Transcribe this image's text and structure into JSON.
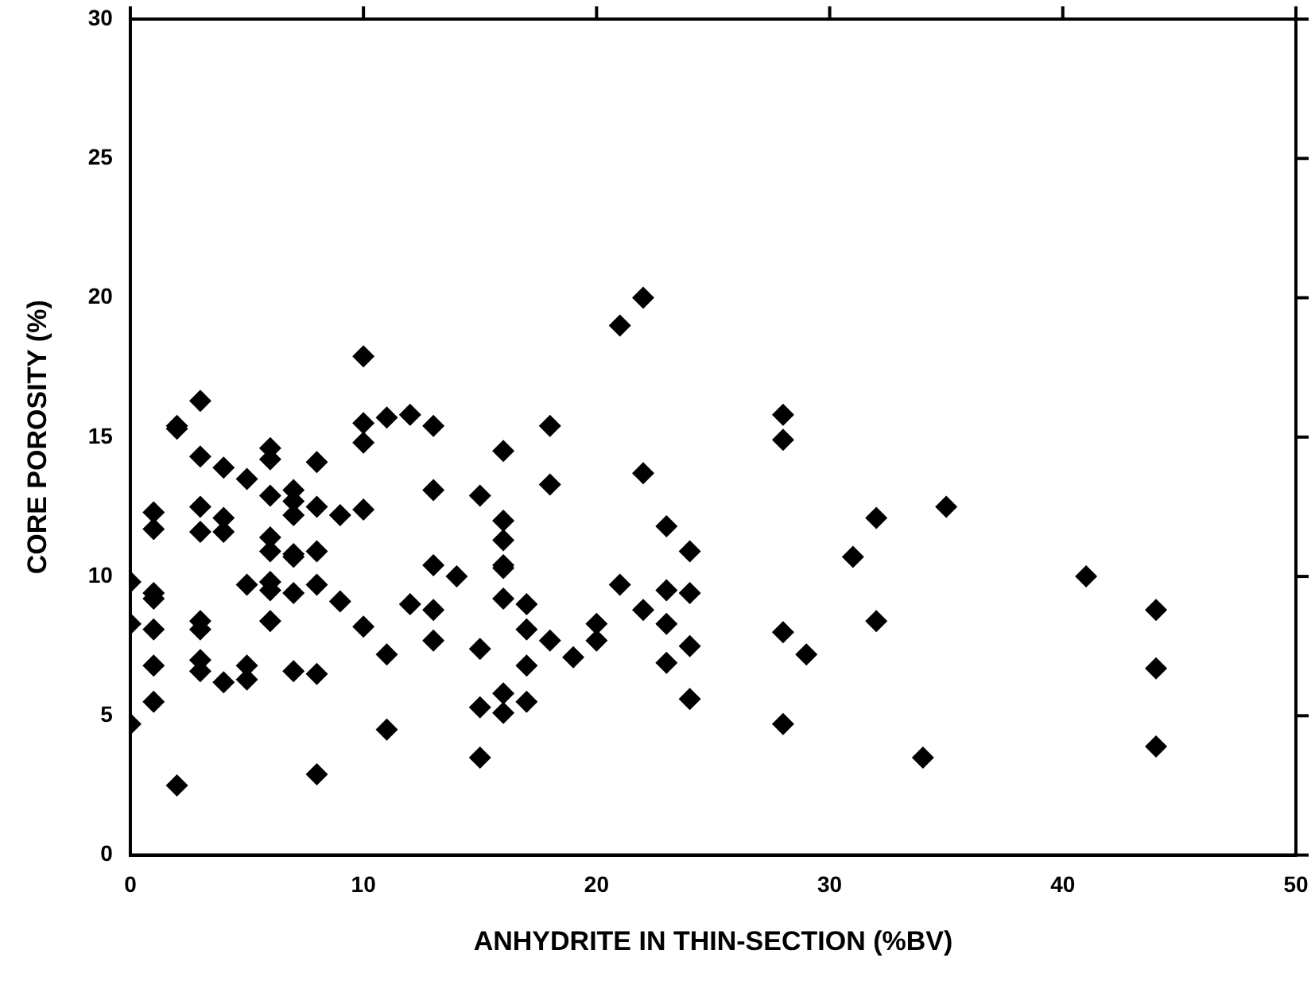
{
  "chart_data": {
    "type": "scatter",
    "xlabel": "ANHYDRITE IN THIN-SECTION (%BV)",
    "ylabel": "CORE POROSITY (%)",
    "xlim": [
      0,
      50
    ],
    "xticks": [
      0,
      10,
      20,
      30,
      40,
      50
    ],
    "ylim": [
      0,
      30
    ],
    "yticks": [
      0,
      5,
      10,
      15,
      20,
      25,
      30
    ],
    "grid": false,
    "legend": false,
    "marker": "diamond",
    "series": [
      {
        "color": "#000000",
        "x": [
          0,
          0,
          0,
          1,
          1,
          1,
          1,
          1,
          1,
          1,
          2,
          2,
          2,
          3,
          3,
          3,
          3,
          3,
          3,
          3,
          3,
          4,
          4,
          4,
          4,
          5,
          5,
          5,
          5,
          6,
          6,
          6,
          6,
          6,
          6,
          6,
          6,
          7,
          7,
          7,
          7,
          7,
          7,
          7,
          8,
          8,
          8,
          8,
          8,
          8,
          9,
          9,
          10,
          10,
          10,
          10,
          10,
          11,
          11,
          11,
          12,
          12,
          13,
          13,
          13,
          13,
          13,
          14,
          15,
          15,
          15,
          15,
          16,
          16,
          16,
          16,
          16,
          16,
          16,
          16,
          17,
          17,
          17,
          17,
          18,
          18,
          18,
          19,
          20,
          20,
          21,
          21,
          22,
          22,
          22,
          23,
          23,
          23,
          23,
          24,
          24,
          24,
          24,
          28,
          28,
          28,
          28,
          29,
          31,
          32,
          32,
          34,
          35,
          41,
          44,
          44,
          44
        ],
        "values": [
          9.8,
          8.3,
          4.7,
          12.3,
          11.7,
          9.4,
          9.2,
          8.1,
          6.8,
          5.5,
          15.4,
          15.3,
          2.5,
          16.3,
          14.3,
          12.5,
          11.6,
          8.4,
          8.1,
          7.0,
          6.6,
          13.9,
          12.1,
          11.6,
          6.2,
          13.5,
          9.7,
          6.8,
          6.3,
          14.6,
          14.2,
          12.9,
          11.4,
          10.9,
          9.8,
          9.5,
          8.4,
          13.1,
          12.7,
          12.2,
          10.8,
          10.7,
          9.4,
          6.6,
          14.1,
          12.5,
          10.9,
          9.7,
          6.5,
          2.9,
          12.2,
          9.1,
          17.9,
          15.5,
          14.8,
          12.4,
          8.2,
          15.7,
          7.2,
          4.5,
          15.8,
          9.0,
          15.4,
          13.1,
          10.4,
          8.8,
          7.7,
          10.0,
          12.9,
          7.4,
          5.3,
          3.5,
          14.5,
          12.0,
          11.3,
          10.4,
          10.3,
          9.2,
          5.8,
          5.1,
          9.0,
          8.1,
          6.8,
          5.5,
          15.4,
          13.3,
          7.7,
          7.1,
          8.3,
          7.7,
          19.0,
          9.7,
          20.0,
          13.7,
          8.8,
          11.8,
          9.5,
          8.3,
          6.9,
          10.9,
          9.4,
          7.5,
          5.6,
          15.8,
          14.9,
          8.0,
          4.7,
          7.2,
          10.7,
          12.1,
          8.4,
          3.5,
          12.5,
          10.0,
          8.8,
          6.7,
          3.9
        ]
      }
    ]
  }
}
